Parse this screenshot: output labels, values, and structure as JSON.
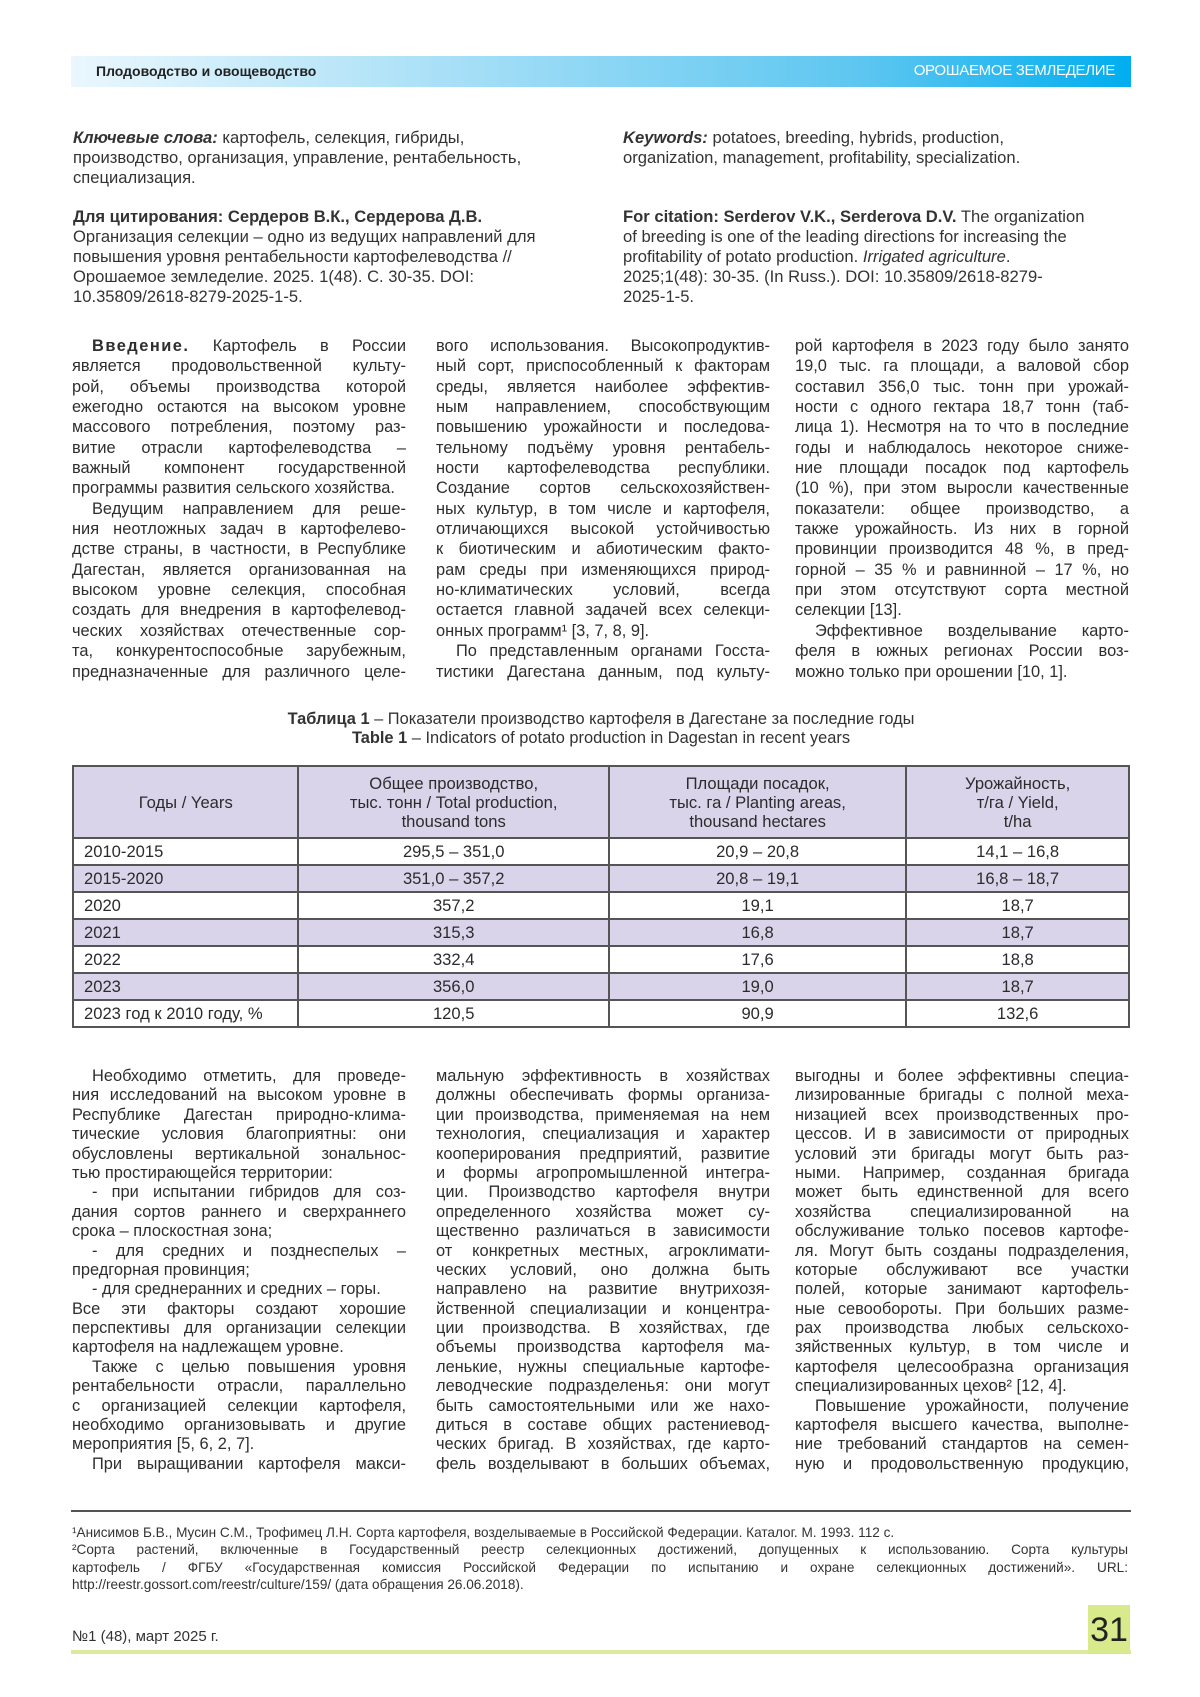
{
  "header": {
    "section": "Плодоводство и овощеводство",
    "journal": "ОРОШАЕМОЕ ЗЕМЛЕДЕЛИЕ",
    "bar_colors": [
      "#eaf7fd",
      "#00aeef"
    ]
  },
  "keywords_ru": {
    "label": "Ключевые слова:",
    "lines": [
      " картофель, селекция, гибриды,",
      "производство, организация, управление, рентабельность,",
      "специализация."
    ]
  },
  "keywords_en": {
    "label": "Keywords:",
    "lines": [
      " potatoes, breeding, hybrids, production,",
      "organization, management, profitability, specialization."
    ]
  },
  "citation_ru": {
    "label": "Для цитирования: Сердеров В.К., Сердерова Д.В.",
    "lines": [
      "Организация селекции – одно из ведущих направлений для",
      "повышения уровня рентабельности картофелеводства //",
      "Орошаемое земледелие. 2025. 1(48). С. 30-35. DOI:",
      "10.35809/2618-8279-2025-1-5."
    ]
  },
  "citation_en": {
    "label": "For citation: Serderov V.K., Serderova D.V.",
    "first_tail": " The organization",
    "line2": "of breeding is one of the leading directions for increasing the",
    "line3_pre": "profitability of potato production. ",
    "line3_italic": "Irrigated agriculture",
    "line3_post": ".",
    "line4": "2025;1(48): 30-35. (In Russ.). DOI: 10.35809/2618-8279-",
    "line5": "2025-1-5."
  },
  "body_top": [
    [
      {
        "indent": true,
        "lead": "Введение.",
        "lines": [
          " Картофель в России",
          "является продовольственной культу-",
          "рой, объемы производства которой",
          "ежегодно остаются на высоком уровне",
          "массового потребления, поэтому раз-",
          "витие отрасли картофелеводства –",
          "важный компонент государственной",
          "программы развития сельского хозяйства."
        ]
      },
      {
        "indent": true,
        "lines": [
          "Ведущим направлением для реше-",
          "ния неотложных задач в картофелево-",
          "дстве страны, в частности, в Республике",
          "Дагестан, является организованная на",
          "высоком уровне селекция, способная",
          "создать для внедрения в картофелевод-",
          "ческих хозяйствах отечественные сор-",
          "та, конкурентоспособные зарубежным,",
          "предназначенные для различного целе-"
        ]
      }
    ],
    [
      {
        "indent": false,
        "lines": [
          "вого использования. Высокопродуктив-",
          "ный сорт, приспособленный к факторам",
          "среды, является наиболее эффектив-",
          "ным направлением, способствующим",
          "повышению урожайности и последова-",
          "тельному подъёму уровня рентабель-",
          "ности картофелеводства республики.",
          "Создание сортов сельскохозяйствен-",
          "ных культур, в том числе и картофеля,",
          "отличающихся высокой устойчивостью",
          "к биотическим и абиотическим факто-",
          "рам среды при изменяющихся природ-",
          "но-климатических условий, всегда",
          "остается главной задачей всех селекци-",
          "онных программ¹ [3, 7, 8, 9]."
        ]
      },
      {
        "indent": true,
        "lines": [
          "По представленным органами Госста-",
          "тистики Дагестана данным, под культу-"
        ]
      }
    ],
    [
      {
        "indent": false,
        "lines": [
          "рой картофеля в 2023 году было занято",
          "19,0 тыс. га площади, а валовой сбор",
          "составил 356,0 тыс. тонн при урожай-",
          "ности с одного гектара 18,7 тонн (таб-",
          "лица 1). Несмотря на то что в последние",
          "годы и наблюдалось некоторое сниже-",
          "ние площади посадок под картофель",
          "(10 %), при этом выросли качественные",
          "показатели: общее производство, а",
          "также урожайность. Из них в горной",
          "провинции производится 48 %, в пред-",
          "горной – 35 % и равнинной – 17 %, но",
          "при этом отсутствуют сорта местной",
          "селекции [13]."
        ]
      },
      {
        "indent": true,
        "lines": [
          "Эффективное возделывание карто-",
          "феля в южных регионах России воз-",
          "можно только при орошении [10, 1]."
        ]
      }
    ]
  ],
  "table": {
    "caption_ru_label": "Таблица 1",
    "caption_ru": " – Показатели производство картофеля в Дагестане за последние годы",
    "caption_en_label": "Table 1",
    "caption_en": " – Indicators of potato production in Dagestan in recent years",
    "headers": [
      [
        "Годы / Years"
      ],
      [
        "Общее производство,",
        "тыс. тонн / Total production,",
        "thousand tons"
      ],
      [
        "Площади посадок,",
        "тыс. га / Planting areas,",
        "thousand hectares"
      ],
      [
        "Урожайность,",
        "т/га / Yield,",
        "t/ha"
      ]
    ],
    "rows": [
      [
        "2010-2015",
        "295,5 – 351,0",
        "20,9 – 20,8",
        "14,1 – 16,8"
      ],
      [
        "2015-2020",
        "351,0 – 357,2",
        "20,8 – 19,1",
        "16,8 – 18,7"
      ],
      [
        "2020",
        "357,2",
        "19,1",
        "18,7"
      ],
      [
        "2021",
        "315,3",
        "16,8",
        "18,7"
      ],
      [
        "2022",
        "332,4",
        "17,6",
        "18,8"
      ],
      [
        "2023",
        "356,0",
        "19,0",
        "18,7"
      ],
      [
        "2023 год к 2010 году, %",
        "120,5",
        "90,9",
        "132,6"
      ]
    ],
    "header_bg": "#d9d4ea"
  },
  "body_bottom": [
    [
      {
        "indent": true,
        "lines": [
          "Необходимо отметить, для проведе-",
          "ния исследований на высоком уровне в",
          "Республике Дагестан природно-клима-",
          "тические условия благоприятны: они",
          "обусловлены вертикальной зональнос-",
          "тью простирающейся территории:"
        ]
      },
      {
        "indent": true,
        "lines": [
          "- при испытании гибридов для соз-",
          "дания сортов раннего и сверхраннего",
          "срока – плоскостная зона;"
        ]
      },
      {
        "indent": true,
        "lines": [
          "- для средних и позднеспелых –",
          "предгорная провинция;"
        ]
      },
      {
        "indent": true,
        "lines": [
          "- для среднеранних и средних – горы."
        ]
      },
      {
        "indent": false,
        "lines": [
          "Все эти факторы создают хорошие",
          "перспективы для организации селекции",
          "картофеля на надлежащем уровне."
        ]
      },
      {
        "indent": true,
        "lines": [
          "Также с целью повышения уровня",
          "рентабельности отрасли, параллельно",
          "с организацией селекции картофеля,",
          "необходимо организовывать и другие",
          "мероприятия [5, 6, 2, 7]."
        ]
      },
      {
        "indent": true,
        "lines": [
          "При выращивании картофеля макси-"
        ]
      }
    ],
    [
      {
        "indent": false,
        "lines": [
          "мальную эффективность в хозяйствах",
          "должны обеспечивать формы организа-",
          "ции производства, применяемая на нем",
          "технология, специализация и характер",
          "кооперирования предприятий, развитие",
          "и формы агропромышленной интегра-",
          "ции. Производство картофеля внутри",
          "определенного хозяйства может су-",
          "щественно различаться в зависимости",
          "от конкретных местных, агроклимати-",
          "ческих условий, оно должна быть",
          "направлено на развитие внутрихозя-",
          "йственной специализации и концентра-",
          "ции производства. В хозяйствах, где",
          "объемы производства картофеля ма-",
          "ленькие, нужны специальные картофе-",
          "леводческие подразделенья: они могут",
          "быть самостоятельными или же нахо-",
          "диться в составе общих растениевод-",
          "ческих бригад. В хозяйствах, где карто-",
          "фель возделывают в больших объемах,"
        ]
      }
    ],
    [
      {
        "indent": false,
        "lines": [
          "выгодны и более эффективны специа-",
          "лизированные бригады с полной меха-",
          "низацией всех производственных про-",
          "цессов. И в зависимости от природных",
          "условий эти бригады могут быть раз-",
          "ными. Например, созданная бригада",
          "может быть единственной для всего",
          "хозяйства специализированной на",
          "обслуживание только посевов картофе-",
          "ля. Могут быть созданы подразделения,",
          "которые обслуживают все участки",
          "полей, которые занимают картофель-",
          "ные севообороты. При больших разме-",
          "рах производства любых сельскохо-",
          "зяйственных культур, в том числе и",
          "картофеля целесообразна организация",
          "специализированных цехов² [12, 4]."
        ]
      },
      {
        "indent": true,
        "lines": [
          "Повышение урожайности, получение",
          "картофеля высшего качества, выполне-",
          "ние требований стандартов на семен-",
          "ную и продовольственную продукцию,"
        ]
      }
    ]
  ],
  "footnotes": [
    {
      "indent": false,
      "lines": [
        "¹Анисимов Б.В., Мусин С.М., Трофимец Л.Н. Сорта картофеля, возделываемые в Российской Федерации. Каталог. М. 1993. 112 с."
      ]
    },
    {
      "indent": false,
      "lines": [
        "²Сорта растений, включенные в Государственный реестр селекционных достижений, допущенных к использованию. Сорта культуры",
        "картофель / ФГБУ «Государственная комиссия Российской Федерации по испытанию и охране селекционных достижений». URL:",
        "http://reestr.gossort.com/reestr/culture/159/ (дата обращения 26.06.2018)."
      ]
    }
  ],
  "footer": {
    "issue": "№1 (48), март 2025 г.",
    "page_number": "31",
    "accent": "#d8ea8c"
  }
}
